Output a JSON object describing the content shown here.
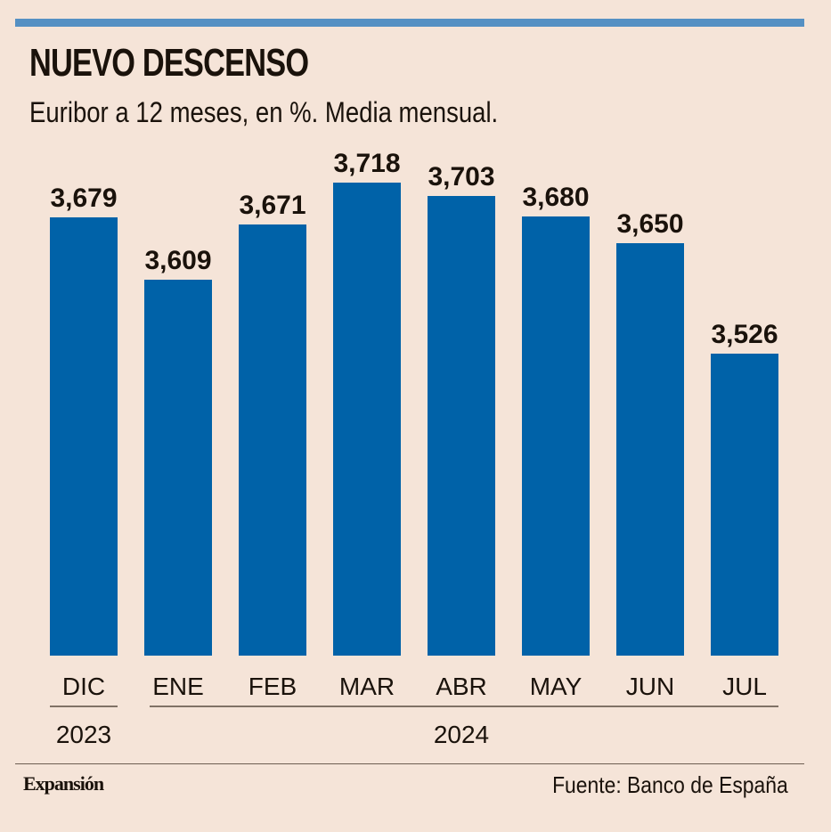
{
  "header": {
    "title": "NUEVO DESCENSO",
    "subtitle": "Euribor a 12 meses, en %. Media mensual."
  },
  "colors": {
    "background": "#f5e4d8",
    "bar": "#0062a8",
    "accent_bar": "#5590c3",
    "text": "#1a120b"
  },
  "chart_data": {
    "type": "bar",
    "title": "NUEVO DESCENSO",
    "subtitle": "Euribor a 12 meses, en %. Media mensual.",
    "categories": [
      "DIC",
      "ENE",
      "FEB",
      "MAR",
      "ABR",
      "MAY",
      "JUN",
      "JUL"
    ],
    "values": [
      3.679,
      3.609,
      3.671,
      3.718,
      3.703,
      3.68,
      3.65,
      3.526
    ],
    "value_labels": [
      "3,679",
      "3,609",
      "3,671",
      "3,718",
      "3,703",
      "3,680",
      "3,650",
      "3,526"
    ],
    "year_groups": [
      {
        "label": "2023",
        "start": 0,
        "end": 0
      },
      {
        "label": "2024",
        "start": 1,
        "end": 7
      }
    ],
    "xlabel": "",
    "ylabel": "",
    "ylim": [
      3.187,
      3.75
    ],
    "grid": false,
    "legend": "none"
  },
  "footer": {
    "brand": "Expansión",
    "source": "Fuente: Banco de España"
  }
}
